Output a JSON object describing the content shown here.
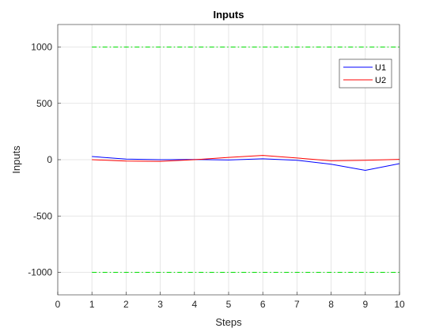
{
  "chart_data": {
    "type": "line",
    "title": "Inputs",
    "xlabel": "Steps",
    "ylabel": "Inputs",
    "xlim": [
      0,
      10
    ],
    "ylim": [
      -1200,
      1200
    ],
    "xticks": [
      0,
      1,
      2,
      3,
      4,
      5,
      6,
      7,
      8,
      9,
      10
    ],
    "yticks": [
      -1000,
      -500,
      0,
      500,
      1000
    ],
    "grid": true,
    "legend_position": "top-right",
    "series": [
      {
        "name": "U1",
        "color": "#0000ff",
        "x": [
          1,
          2,
          3,
          4,
          5,
          6,
          7,
          8,
          9,
          10
        ],
        "y": [
          28,
          5,
          0,
          2,
          -3,
          8,
          -5,
          -40,
          -95,
          -35
        ]
      },
      {
        "name": "U2",
        "color": "#ff0000",
        "x": [
          1,
          2,
          3,
          4,
          5,
          6,
          7,
          8,
          9,
          10
        ],
        "y": [
          0,
          -12,
          -15,
          0,
          20,
          38,
          15,
          -10,
          -5,
          3
        ]
      }
    ],
    "reference_lines": [
      {
        "y": 1000,
        "color": "#00dd00",
        "style": "dash-dot"
      },
      {
        "y": -1000,
        "color": "#00dd00",
        "style": "dash-dot"
      }
    ]
  }
}
